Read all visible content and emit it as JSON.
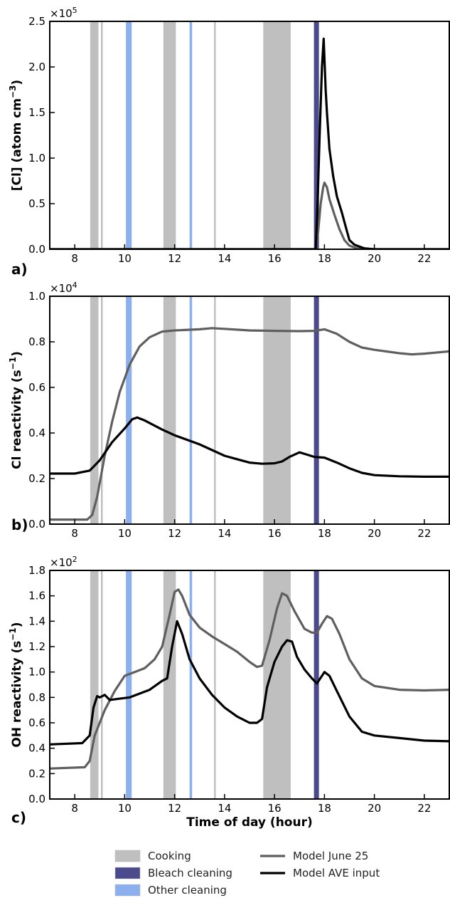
{
  "chart_data": [
    {
      "panel_label": "a)",
      "type": "line",
      "ylabel": "[Cl] (atom cm",
      "ylabel_exp": "−3",
      "ylabel_end": ")",
      "multiplier_base": "×10",
      "multiplier_exp": "5",
      "ylim": [
        0.0,
        2.5
      ],
      "yticks": [
        0.0,
        0.5,
        1.0,
        1.5,
        2.0,
        2.5
      ],
      "ytick_labels": [
        "0.0",
        "0.5",
        "1.0",
        "1.5",
        "2.0",
        "2.5"
      ],
      "xlim": [
        7,
        23
      ],
      "xticks": [
        8,
        10,
        12,
        14,
        16,
        18,
        20,
        22
      ],
      "series": [
        {
          "name": "Model June 25",
          "color": "#5f5f5f",
          "points": [
            [
              7,
              0
            ],
            [
              17.65,
              0
            ],
            [
              17.75,
              0.2
            ],
            [
              17.85,
              0.5
            ],
            [
              17.95,
              0.68
            ],
            [
              18.0,
              0.73
            ],
            [
              18.1,
              0.68
            ],
            [
              18.2,
              0.55
            ],
            [
              18.4,
              0.38
            ],
            [
              18.6,
              0.22
            ],
            [
              18.8,
              0.1
            ],
            [
              19.0,
              0.04
            ],
            [
              19.3,
              0.01
            ],
            [
              19.6,
              0
            ],
            [
              23,
              0
            ]
          ]
        },
        {
          "name": "Model AVE input",
          "color": "#000000",
          "points": [
            [
              7,
              0
            ],
            [
              17.65,
              0
            ],
            [
              17.72,
              0.45
            ],
            [
              17.8,
              1.2
            ],
            [
              17.9,
              2.0
            ],
            [
              17.97,
              2.31
            ],
            [
              18.05,
              1.75
            ],
            [
              18.1,
              1.5
            ],
            [
              18.2,
              1.1
            ],
            [
              18.35,
              0.8
            ],
            [
              18.5,
              0.58
            ],
            [
              18.7,
              0.4
            ],
            [
              18.85,
              0.25
            ],
            [
              19.0,
              0.1
            ],
            [
              19.2,
              0.05
            ],
            [
              19.6,
              0.01
            ],
            [
              20.0,
              0
            ],
            [
              23,
              0
            ]
          ]
        }
      ]
    },
    {
      "panel_label": "b)",
      "type": "line",
      "ylabel": "Cl reactivity (s",
      "ylabel_exp": "−1",
      "ylabel_end": ")",
      "multiplier_base": "×10",
      "multiplier_exp": "4",
      "ylim": [
        0.0,
        1.0
      ],
      "yticks": [
        0.0,
        0.2,
        0.4,
        0.6,
        0.8,
        1.0
      ],
      "ytick_labels": [
        "0.0",
        "0.2",
        "0.4",
        "0.6",
        "0.8",
        "1.0"
      ],
      "xlim": [
        7,
        23
      ],
      "xticks": [
        8,
        10,
        12,
        14,
        16,
        18,
        20,
        22
      ],
      "series": [
        {
          "name": "Model June 25",
          "color": "#5f5f5f",
          "points": [
            [
              7,
              0.02
            ],
            [
              8.5,
              0.02
            ],
            [
              8.7,
              0.04
            ],
            [
              8.9,
              0.12
            ],
            [
              9.2,
              0.3
            ],
            [
              9.5,
              0.45
            ],
            [
              9.8,
              0.58
            ],
            [
              10.2,
              0.7
            ],
            [
              10.6,
              0.78
            ],
            [
              11.0,
              0.82
            ],
            [
              11.5,
              0.845
            ],
            [
              12.0,
              0.85
            ],
            [
              13.0,
              0.855
            ],
            [
              13.5,
              0.86
            ],
            [
              14.0,
              0.857
            ],
            [
              15.0,
              0.85
            ],
            [
              16.0,
              0.848
            ],
            [
              17.0,
              0.847
            ],
            [
              17.6,
              0.848
            ],
            [
              18.0,
              0.855
            ],
            [
              18.5,
              0.835
            ],
            [
              19.0,
              0.8
            ],
            [
              19.5,
              0.775
            ],
            [
              20.0,
              0.765
            ],
            [
              21.0,
              0.75
            ],
            [
              21.5,
              0.745
            ],
            [
              22.0,
              0.748
            ],
            [
              23.0,
              0.758
            ]
          ]
        },
        {
          "name": "Model AVE input",
          "color": "#000000",
          "points": [
            [
              7,
              0.222
            ],
            [
              8.0,
              0.222
            ],
            [
              8.6,
              0.235
            ],
            [
              9.0,
              0.28
            ],
            [
              9.5,
              0.36
            ],
            [
              10.0,
              0.42
            ],
            [
              10.3,
              0.46
            ],
            [
              10.5,
              0.468
            ],
            [
              10.8,
              0.455
            ],
            [
              11.5,
              0.415
            ],
            [
              12.0,
              0.39
            ],
            [
              13.0,
              0.35
            ],
            [
              13.5,
              0.325
            ],
            [
              14.0,
              0.3
            ],
            [
              14.5,
              0.285
            ],
            [
              15.0,
              0.27
            ],
            [
              15.5,
              0.265
            ],
            [
              16.0,
              0.267
            ],
            [
              16.3,
              0.275
            ],
            [
              16.6,
              0.295
            ],
            [
              17.0,
              0.315
            ],
            [
              17.3,
              0.305
            ],
            [
              17.6,
              0.295
            ],
            [
              18.0,
              0.292
            ],
            [
              18.5,
              0.27
            ],
            [
              19.0,
              0.245
            ],
            [
              19.5,
              0.225
            ],
            [
              20.0,
              0.215
            ],
            [
              21.0,
              0.21
            ],
            [
              22.0,
              0.208
            ],
            [
              23.0,
              0.208
            ]
          ]
        }
      ]
    },
    {
      "panel_label": "c)",
      "type": "line",
      "ylabel": "OH reactivity (s",
      "ylabel_exp": "−1",
      "ylabel_end": ")",
      "multiplier_base": "×10",
      "multiplier_exp": "2",
      "ylim": [
        0.0,
        1.8
      ],
      "yticks": [
        0.0,
        0.2,
        0.4,
        0.6,
        0.8,
        1.0,
        1.2,
        1.4,
        1.6,
        1.8
      ],
      "ytick_labels": [
        "0.0",
        "0.2",
        "0.4",
        "0.6",
        "0.8",
        "1.0",
        "1.2",
        "1.4",
        "1.6",
        "1.8"
      ],
      "xlabel": "Time of day (hour)",
      "xlim": [
        7,
        23
      ],
      "xticks": [
        8,
        10,
        12,
        14,
        16,
        18,
        20,
        22
      ],
      "series": [
        {
          "name": "Model June 25",
          "color": "#5f5f5f",
          "points": [
            [
              7,
              0.24
            ],
            [
              8.4,
              0.25
            ],
            [
              8.6,
              0.3
            ],
            [
              8.8,
              0.5
            ],
            [
              9.2,
              0.7
            ],
            [
              9.6,
              0.85
            ],
            [
              10.0,
              0.97
            ],
            [
              10.4,
              1.0
            ],
            [
              10.8,
              1.03
            ],
            [
              11.2,
              1.1
            ],
            [
              11.5,
              1.2
            ],
            [
              11.8,
              1.45
            ],
            [
              12.0,
              1.63
            ],
            [
              12.15,
              1.65
            ],
            [
              12.3,
              1.6
            ],
            [
              12.6,
              1.45
            ],
            [
              13.0,
              1.35
            ],
            [
              13.5,
              1.28
            ],
            [
              14.0,
              1.22
            ],
            [
              14.5,
              1.16
            ],
            [
              15.0,
              1.08
            ],
            [
              15.3,
              1.04
            ],
            [
              15.5,
              1.05
            ],
            [
              15.8,
              1.25
            ],
            [
              16.1,
              1.5
            ],
            [
              16.3,
              1.62
            ],
            [
              16.5,
              1.6
            ],
            [
              16.8,
              1.48
            ],
            [
              17.2,
              1.34
            ],
            [
              17.5,
              1.31
            ],
            [
              17.7,
              1.31
            ],
            [
              17.9,
              1.38
            ],
            [
              18.1,
              1.44
            ],
            [
              18.3,
              1.42
            ],
            [
              18.6,
              1.3
            ],
            [
              19.0,
              1.1
            ],
            [
              19.5,
              0.95
            ],
            [
              20.0,
              0.89
            ],
            [
              21.0,
              0.86
            ],
            [
              22.0,
              0.855
            ],
            [
              23.0,
              0.86
            ]
          ]
        },
        {
          "name": "Model AVE input",
          "color": "#000000",
          "points": [
            [
              7,
              0.43
            ],
            [
              8.3,
              0.44
            ],
            [
              8.6,
              0.5
            ],
            [
              8.75,
              0.72
            ],
            [
              8.9,
              0.81
            ],
            [
              9.0,
              0.8
            ],
            [
              9.2,
              0.82
            ],
            [
              9.4,
              0.78
            ],
            [
              9.8,
              0.79
            ],
            [
              10.2,
              0.8
            ],
            [
              11.0,
              0.86
            ],
            [
              11.5,
              0.93
            ],
            [
              11.7,
              0.95
            ],
            [
              11.9,
              1.2
            ],
            [
              12.1,
              1.4
            ],
            [
              12.3,
              1.3
            ],
            [
              12.6,
              1.1
            ],
            [
              13.0,
              0.95
            ],
            [
              13.5,
              0.82
            ],
            [
              14.0,
              0.72
            ],
            [
              14.5,
              0.65
            ],
            [
              15.0,
              0.6
            ],
            [
              15.3,
              0.6
            ],
            [
              15.5,
              0.63
            ],
            [
              15.7,
              0.88
            ],
            [
              16.0,
              1.08
            ],
            [
              16.3,
              1.2
            ],
            [
              16.5,
              1.25
            ],
            [
              16.7,
              1.24
            ],
            [
              16.9,
              1.12
            ],
            [
              17.2,
              1.02
            ],
            [
              17.5,
              0.95
            ],
            [
              17.7,
              0.91
            ],
            [
              17.9,
              0.97
            ],
            [
              18.0,
              1.0
            ],
            [
              18.2,
              0.97
            ],
            [
              18.5,
              0.85
            ],
            [
              19.0,
              0.65
            ],
            [
              19.5,
              0.53
            ],
            [
              20.0,
              0.5
            ],
            [
              21.0,
              0.48
            ],
            [
              22.0,
              0.46
            ],
            [
              23.0,
              0.455
            ]
          ]
        }
      ]
    }
  ],
  "events": {
    "cooking": [
      [
        8.62,
        8.95
      ],
      [
        9.05,
        9.12
      ],
      [
        11.55,
        12.05
      ],
      [
        13.58,
        13.65
      ],
      [
        15.55,
        16.65
      ]
    ],
    "bleach_cleaning": [
      [
        17.58,
        17.78
      ]
    ],
    "other_cleaning": [
      [
        10.05,
        10.28
      ],
      [
        12.6,
        12.7
      ]
    ]
  },
  "colors": {
    "cooking": "#bfbfbf",
    "bleach": "#4a4a8c",
    "other": "#8cb0ee",
    "june25": "#5f5f5f",
    "ave": "#000000"
  },
  "legend": {
    "cooking": "Cooking",
    "bleach": "Bleach cleaning",
    "other": "Other cleaning",
    "june25": "Model June 25",
    "ave": "Model AVE input"
  }
}
